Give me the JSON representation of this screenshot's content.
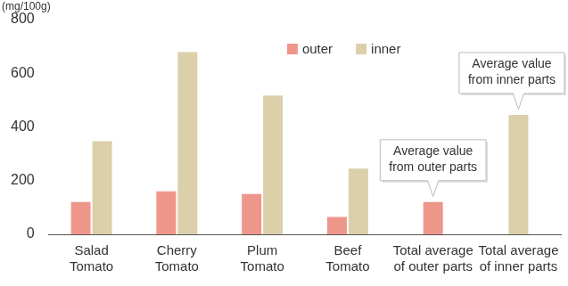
{
  "chart_data": {
    "type": "bar",
    "ylabel": "(mg/100g)",
    "categories": [
      [
        "Salad",
        "Tomato"
      ],
      [
        "Cherry",
        "Tomato"
      ],
      [
        "Plum",
        "Tomato"
      ],
      [
        "Beef",
        "Tomato"
      ],
      [
        "Total average",
        "of outer parts"
      ],
      [
        "Total average",
        "of inner parts"
      ]
    ],
    "series": [
      {
        "name": "outer",
        "color": "#ef968b",
        "values": [
          120,
          160,
          150,
          65,
          120,
          null
        ]
      },
      {
        "name": "inner",
        "color": "#dbd0aa",
        "values": [
          347,
          679,
          517,
          245,
          null,
          445
        ]
      }
    ],
    "ylim": [
      0,
      800
    ],
    "yticks": [
      0,
      200,
      400,
      600,
      800
    ],
    "grid": false,
    "legend": "top",
    "annotations": [
      {
        "series": "outer",
        "text": [
          "Average value",
          "from outer parts"
        ]
      },
      {
        "series": "inner",
        "text": [
          "Average value",
          "from inner parts"
        ]
      }
    ]
  }
}
